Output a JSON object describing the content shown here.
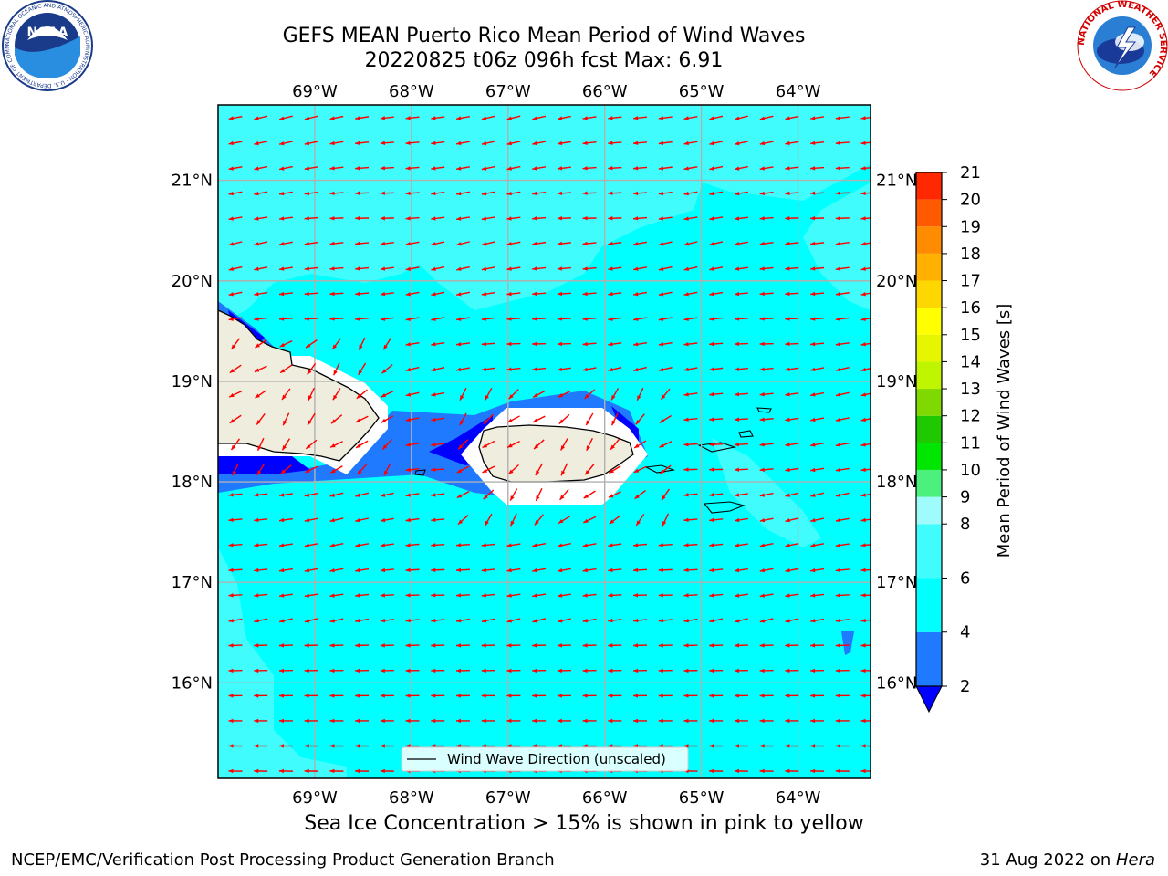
{
  "header": {
    "title_line1": "GEFS MEAN Puerto Rico Mean Period of Wind Waves",
    "title_line2": "20220825 t06z 096h fcst   Max: 6.91"
  },
  "caption": "Sea Ice Concentration > 15% is shown in pink to yellow",
  "footer": {
    "left": "NCEP/EMC/Verification Post Processing Product Generation Branch",
    "right_prefix": "31 Aug 2022 on ",
    "right_machine": "Hera"
  },
  "logos": {
    "noaa_text": "NOAA",
    "noaa_ring_text": "NATIONAL OCEANIC AND ATMOSPHERIC ADMINISTRATION · U.S. DEPARTMENT OF COMMERCE",
    "nws_ring_text": "NATIONAL WEATHER SERVICE"
  },
  "chart_data": {
    "type": "heatmap",
    "title": "GEFS MEAN Puerto Rico Mean Period of Wind Waves",
    "subtitle": "20220825 t06z 096h fcst   Max: 6.91",
    "lon_range": [
      -70,
      -63.25
    ],
    "lat_range": [
      15.05,
      21.75
    ],
    "x_ticks": [
      "69°W",
      "68°W",
      "67°W",
      "66°W",
      "65°W",
      "64°W"
    ],
    "x_tick_values": [
      -69,
      -68,
      -67,
      -66,
      -65,
      -64
    ],
    "y_ticks": [
      "16°N",
      "17°N",
      "18°N",
      "19°N",
      "20°N",
      "21°N"
    ],
    "y_tick_values": [
      16,
      17,
      18,
      19,
      20,
      21
    ],
    "grid": true,
    "colorbar": {
      "label": "Mean Period of Wind Waves [s]",
      "levels": [
        2,
        4,
        6,
        8,
        9,
        10,
        11,
        12,
        13,
        14,
        15,
        16,
        17,
        18,
        19,
        20,
        21
      ],
      "colors": [
        "#1f7aff",
        "#00ffff",
        "#40fcfc",
        "#a0fcfc",
        "#4cf07c",
        "#00e600",
        "#20c800",
        "#7fd900",
        "#bff500",
        "#e6f500",
        "#ffff00",
        "#ffd700",
        "#ffb000",
        "#ff8c00",
        "#ff5a00",
        "#ff2800",
        "#ff0000"
      ],
      "under_color": "#0000ff",
      "extend": "min"
    },
    "max_value": 6.91,
    "dominant_range": [
      4,
      6
    ],
    "vector_field": {
      "name": "Wind Wave Direction (unscaled)",
      "color": "#ff0000",
      "general_direction": "toward west"
    },
    "legend_placement": "bottom-center"
  }
}
